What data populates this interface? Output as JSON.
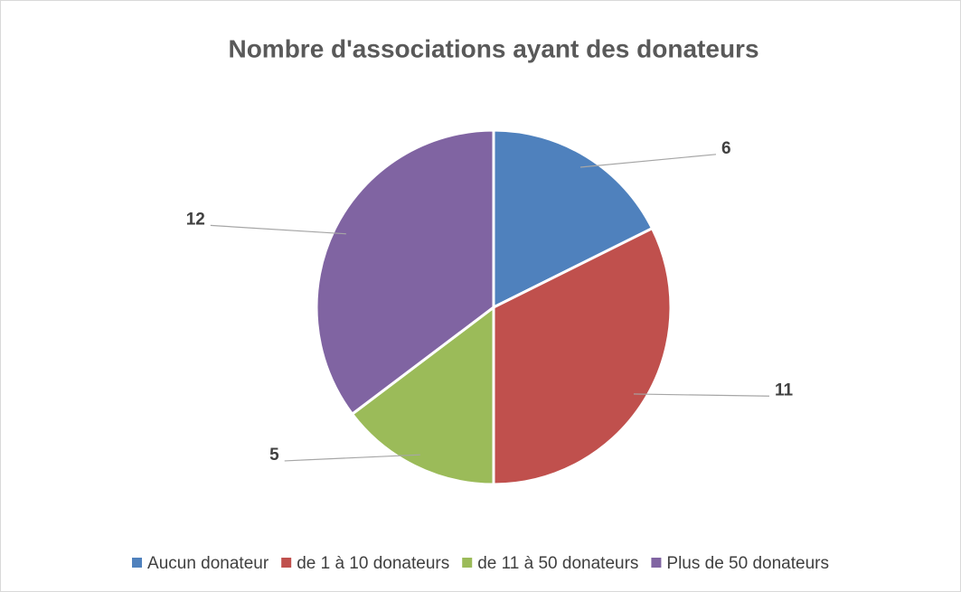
{
  "chart_data": {
    "type": "pie",
    "title": "Nombre d'associations ayant des donateurs",
    "categories": [
      "Aucun donateur",
      "de 1 à 10 donateurs",
      "de 11 à 50 donateurs",
      "Plus de 50 donateurs"
    ],
    "values": [
      6,
      11,
      5,
      12
    ],
    "colors": [
      "#4f81bd",
      "#c0504d",
      "#9bbb59",
      "#8064a2"
    ],
    "legend": "bottom"
  }
}
